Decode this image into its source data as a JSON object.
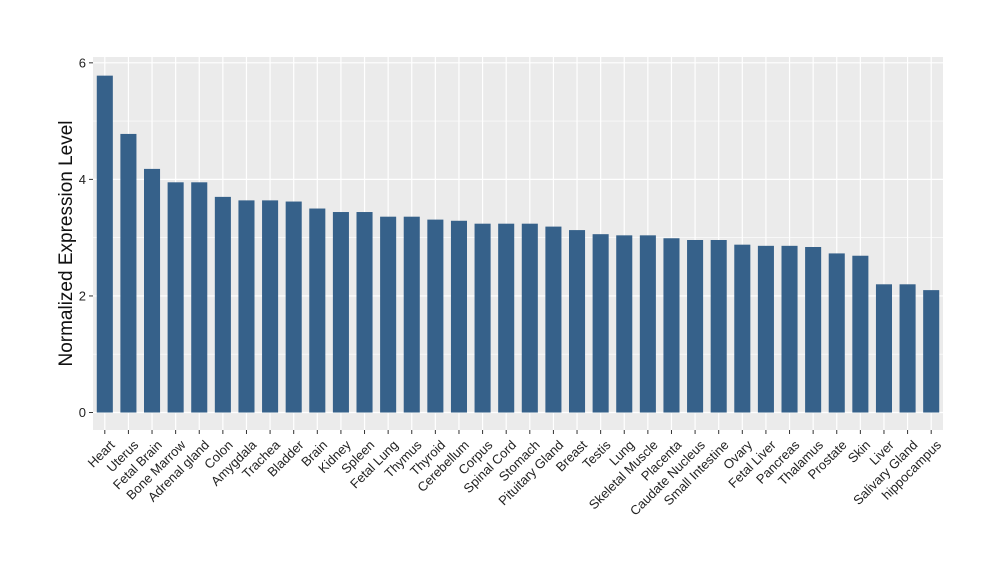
{
  "chart_data": {
    "type": "bar",
    "title": "",
    "xlabel": "",
    "ylabel": "Normalized Expression Level",
    "ylim": [
      -0.3,
      6.1
    ],
    "yticks": [
      0,
      2,
      4,
      6
    ],
    "grid": true,
    "bar_color": "#36618a",
    "panel_background": "#ebebeb",
    "categories": [
      "Heart",
      "Uterus",
      "Fetal Brain",
      "Bone Marrow",
      "Adrenal gland",
      "Colon",
      "Amygdala",
      "Trachea",
      "Bladder",
      "Brain",
      "Kidney",
      "Spleen",
      "Fetal Lung",
      "Thymus",
      "Thyroid",
      "Cerebellum",
      "Corpus",
      "Spinal Cord",
      "Stomach",
      "Pituitary Gland",
      "Breast",
      "Testis",
      "Lung",
      "Skeletal Muscle",
      "Placenta",
      "Caudate Nucleus",
      "Small Intestine",
      "Ovary",
      "Fetal Liver",
      "Pancreas",
      "Thalamus",
      "Prostate",
      "Skin",
      "Liver",
      "Salivary Gland",
      "hippocampus"
    ],
    "values": [
      5.78,
      4.78,
      4.18,
      3.95,
      3.95,
      3.7,
      3.64,
      3.64,
      3.62,
      3.5,
      3.44,
      3.44,
      3.36,
      3.36,
      3.31,
      3.29,
      3.24,
      3.24,
      3.24,
      3.19,
      3.13,
      3.06,
      3.04,
      3.04,
      2.99,
      2.96,
      2.96,
      2.88,
      2.86,
      2.86,
      2.84,
      2.73,
      2.69,
      2.2,
      2.2,
      2.1
    ]
  }
}
